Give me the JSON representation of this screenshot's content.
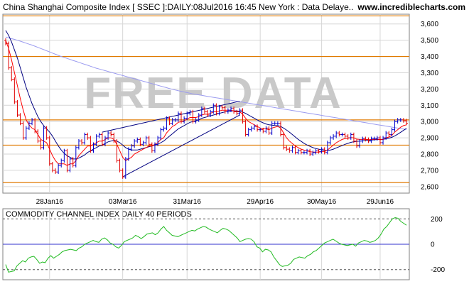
{
  "header": {
    "title": "China Shanghai Composite Index [ SSEC ]:DAILY:08Jul2016 16:45 New York : Data Delaye..",
    "site": "www.incrediblecharts.com"
  },
  "watermark": "FREE DATA",
  "colors": {
    "up": "#0000cc",
    "down": "#e00000",
    "ma_short": "#ff0000",
    "ma_mid": "#000080",
    "ma_long": "#9b9bf0",
    "support": "#e07a00",
    "cci": "#22bb22",
    "grid": "#d6d6d6",
    "trend": "#000080"
  },
  "chart_data": [
    {
      "type": "candlestick",
      "title": "China Shanghai Composite Index [ SSEC ]:DAILY:08Jul2016 16:45 New York : Data Delaye..",
      "x_tick_labels": [
        "28Jan16",
        "03Mar16",
        "31Mar16",
        "29Apr16",
        "30May16",
        "29Jun16"
      ],
      "y_tick_labels": [
        "2,600",
        "2,700",
        "2,800",
        "2,900",
        "3,000",
        "3,100",
        "3,200",
        "3,300",
        "3,400",
        "3,500",
        "3,600"
      ],
      "ylim": [
        2560,
        3660
      ],
      "y_axis_side": "right",
      "grid": true,
      "horizontal_levels": [
        3650,
        3400,
        3010,
        2855,
        2625
      ],
      "trendlines": [
        {
          "from": [
            33,
            2935
          ],
          "to": [
            80,
            3125
          ]
        },
        {
          "from": [
            40,
            2660
          ],
          "to": [
            80,
            3040
          ]
        }
      ],
      "close": [
        3480,
        3330,
        3260,
        3120,
        3040,
        2990,
        2900,
        2960,
        2990,
        3010,
        2940,
        2880,
        2840,
        2960,
        2900,
        2740,
        2700,
        2690,
        2730,
        2760,
        2820,
        2700,
        2770,
        2730,
        2840,
        2880,
        2870,
        2920,
        2900,
        2820,
        2860,
        2910,
        2920,
        2860,
        2900,
        2930,
        2920,
        2880,
        2760,
        2700,
        2660,
        2770,
        2830,
        2850,
        2880,
        2890,
        2860,
        2870,
        2900,
        2860,
        2820,
        2860,
        2900,
        2950,
        2960,
        3020,
        2990,
        3010,
        3010,
        3050,
        3000,
        3020,
        3050,
        3060,
        3000,
        3010,
        3040,
        3080,
        3060,
        3040,
        3060,
        3100,
        3050,
        3090,
        3085,
        3060,
        3070,
        3080,
        3060,
        3050,
        3070,
        3000,
        2920,
        2950,
        2960,
        2970,
        2950,
        2950,
        2940,
        2960,
        2930,
        2990,
        2990,
        2990,
        2920,
        2840,
        2830,
        2820,
        2840,
        2810,
        2820,
        2810,
        2810,
        2820,
        2800,
        2810,
        2820,
        2815,
        2830,
        2810,
        2870,
        2900,
        2910,
        2930,
        2920,
        2920,
        2910,
        2900,
        2920,
        2880,
        2850,
        2880,
        2895,
        2890,
        2880,
        2895,
        2895,
        2900,
        2870,
        2900,
        2930,
        2920,
        2950,
        3000,
        3010,
        3010,
        3005,
        2990
      ],
      "sma_short": [
        3500,
        3450,
        3380,
        3300,
        3220,
        3140,
        3070,
        3010,
        2980,
        2960,
        2950,
        2920,
        2890,
        2880,
        2870,
        2830,
        2790,
        2760,
        2740,
        2740,
        2740,
        2730,
        2740,
        2740,
        2760,
        2790,
        2810,
        2830,
        2850,
        2850,
        2860,
        2870,
        2880,
        2880,
        2890,
        2900,
        2900,
        2890,
        2860,
        2820,
        2780,
        2760,
        2770,
        2780,
        2800,
        2810,
        2820,
        2830,
        2840,
        2850,
        2850,
        2860,
        2870,
        2890,
        2900,
        2930,
        2950,
        2970,
        2980,
        2995,
        3000,
        3005,
        3015,
        3025,
        3025,
        3025,
        3030,
        3040,
        3045,
        3045,
        3050,
        3060,
        3060,
        3065,
        3070,
        3070,
        3070,
        3070,
        3065,
        3060,
        3060,
        3045,
        3020,
        3000,
        2990,
        2980,
        2970,
        2960,
        2955,
        2955,
        2950,
        2960,
        2965,
        2970,
        2960,
        2930,
        2900,
        2880,
        2865,
        2850,
        2840,
        2830,
        2825,
        2820,
        2815,
        2812,
        2812,
        2812,
        2815,
        2815,
        2825,
        2840,
        2855,
        2870,
        2880,
        2890,
        2895,
        2898,
        2902,
        2900,
        2892,
        2890,
        2890,
        2890,
        2888,
        2890,
        2890,
        2892,
        2888,
        2890,
        2900,
        2905,
        2915,
        2935,
        2950,
        2965,
        2975,
        2980
      ],
      "sma_mid": [
        3560,
        3530,
        3490,
        3440,
        3390,
        3330,
        3270,
        3210,
        3160,
        3110,
        3070,
        3030,
        3000,
        2975,
        2955,
        2935,
        2910,
        2880,
        2850,
        2825,
        2805,
        2790,
        2780,
        2770,
        2770,
        2775,
        2785,
        2795,
        2810,
        2820,
        2830,
        2840,
        2850,
        2855,
        2865,
        2875,
        2880,
        2885,
        2880,
        2870,
        2855,
        2840,
        2830,
        2825,
        2825,
        2825,
        2830,
        2835,
        2840,
        2845,
        2850,
        2855,
        2860,
        2870,
        2880,
        2895,
        2910,
        2925,
        2940,
        2955,
        2965,
        2975,
        2985,
        2995,
        3000,
        3005,
        3010,
        3020,
        3025,
        3030,
        3035,
        3040,
        3045,
        3050,
        3055,
        3060,
        3062,
        3065,
        3066,
        3065,
        3063,
        3058,
        3050,
        3040,
        3030,
        3020,
        3010,
        3000,
        2992,
        2985,
        2980,
        2978,
        2976,
        2975,
        2970,
        2960,
        2948,
        2935,
        2920,
        2905,
        2890,
        2878,
        2866,
        2856,
        2848,
        2840,
        2834,
        2830,
        2826,
        2823,
        2822,
        2825,
        2830,
        2838,
        2845,
        2852,
        2860,
        2866,
        2872,
        2876,
        2878,
        2880,
        2882,
        2884,
        2885,
        2886,
        2888,
        2889,
        2890,
        2891,
        2894,
        2898,
        2903,
        2912,
        2922,
        2934,
        2946,
        2958
      ],
      "sma_long": [
        3520,
        3515,
        3510,
        3505,
        3500,
        3494,
        3488,
        3482,
        3476,
        3470,
        3463,
        3456,
        3449,
        3442,
        3435,
        3428,
        3421,
        3414,
        3407,
        3400,
        3394,
        3388,
        3382,
        3376,
        3370,
        3364,
        3358,
        3352,
        3346,
        3340,
        3334,
        3328,
        3323,
        3318,
        3313,
        3308,
        3303,
        3298,
        3293,
        3288,
        3283,
        3278,
        3273,
        3268,
        3263,
        3258,
        3253,
        3248,
        3243,
        3238,
        3233,
        3228,
        3223,
        3218,
        3213,
        3208,
        3203,
        3198,
        3194,
        3190,
        3186,
        3182,
        3178,
        3174,
        3170,
        3167,
        3164,
        3161,
        3158,
        3155,
        3152,
        3149,
        3146,
        3143,
        3140,
        3137,
        3134,
        3131,
        3128,
        3125,
        3122,
        3119,
        3116,
        3113,
        3110,
        3107,
        3104,
        3101,
        3098,
        3095,
        3092,
        3089,
        3086,
        3083,
        3080,
        3077,
        3074,
        3071,
        3068,
        3065,
        3062,
        3059,
        3056,
        3053,
        3050,
        3047,
        3044,
        3041,
        3038,
        3035,
        3032,
        3029,
        3026,
        3023,
        3020,
        3017,
        3014,
        3011,
        3008,
        3005,
        3002,
        2999,
        2996,
        2993,
        2990,
        2987,
        2984,
        2981,
        2978,
        2975,
        2972,
        2969,
        2966,
        2963,
        2960,
        2957,
        2954,
        2951
      ]
    },
    {
      "type": "line",
      "title": "COMMODITY CHANNEL INDEX DAILY 40 PERIODS",
      "y_tick_labels": [
        "200",
        "0",
        "-200"
      ],
      "ylim": [
        -280,
        280
      ],
      "reference_levels": [
        200,
        0,
        -200
      ],
      "grid": true,
      "series": [
        {
          "values": [
            -160,
            -220,
            -215,
            -210,
            -170,
            -150,
            -130,
            -140,
            -110,
            -100,
            -95,
            -120,
            -150,
            -140,
            -145,
            -110,
            -90,
            -110,
            -95,
            -80,
            -60,
            -50,
            -45,
            -40,
            -45,
            -50,
            -30,
            -20,
            0,
            10,
            20,
            30,
            20,
            15,
            40,
            50,
            35,
            10,
            0,
            -20,
            -30,
            -10,
            20,
            30,
            40,
            50,
            70,
            60,
            45,
            60,
            80,
            85,
            90,
            75,
            90,
            120,
            140,
            110,
            90,
            70,
            65,
            60,
            70,
            80,
            90,
            100,
            110,
            105,
            120,
            130,
            140,
            135,
            120,
            110,
            100,
            90,
            110,
            125,
            120,
            110,
            90,
            70,
            50,
            20,
            30,
            40,
            45,
            40,
            20,
            -20,
            -30,
            -60,
            -40,
            -45,
            -60,
            -100,
            -130,
            -160,
            -175,
            -170,
            -165,
            -150,
            -120,
            -110,
            -100,
            -105,
            -110,
            -90,
            -80,
            -60,
            -50,
            -30,
            -10,
            10,
            20,
            30,
            40,
            25,
            10,
            0,
            -5,
            -10,
            -5,
            0,
            -15,
            10,
            20,
            30,
            25,
            15,
            20,
            30,
            50,
            80,
            120,
            140,
            170,
            200,
            210,
            205,
            180,
            165,
            150
          ]
        }
      ]
    }
  ]
}
